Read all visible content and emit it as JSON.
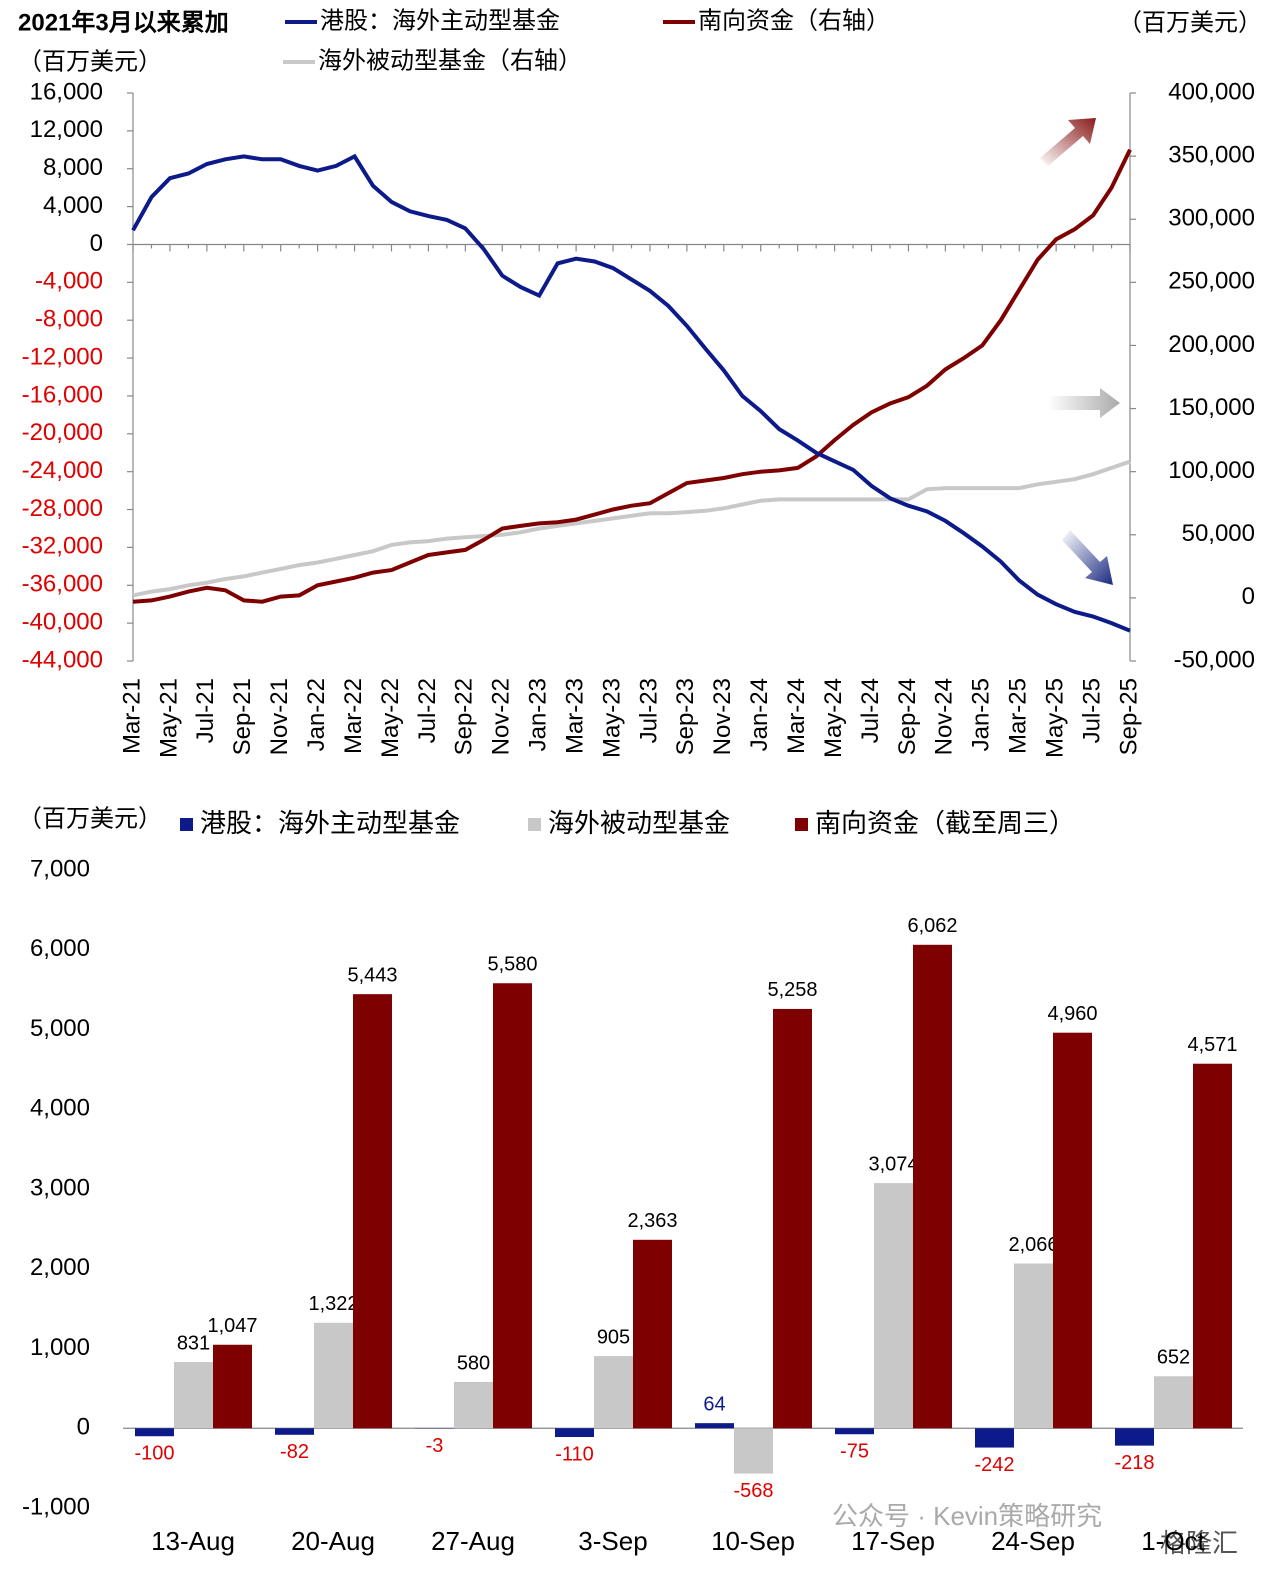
{
  "chart_data": [
    {
      "type": "line",
      "title": "2021年3月以来累加",
      "y_label": "（百万美元）",
      "y2_label": "（百万美元）",
      "negative_tick_color": "#e00000",
      "categories": [
        "Mar-21",
        null,
        "May-21",
        null,
        "Jul-21",
        null,
        "Sep-21",
        null,
        "Nov-21",
        null,
        "Jan-22",
        null,
        "Mar-22",
        null,
        "May-22",
        null,
        "Jul-22",
        null,
        "Sep-22",
        null,
        "Nov-22",
        null,
        "Jan-23",
        null,
        "Mar-23",
        null,
        "May-23",
        null,
        "Jul-23",
        null,
        "Sep-23",
        null,
        "Nov-23",
        null,
        "Jan-24",
        null,
        "Mar-24",
        null,
        "May-24",
        null,
        "Jul-24",
        null,
        "Sep-24",
        null,
        "Nov-24",
        null,
        "Jan-25",
        null,
        "Mar-25",
        null,
        "May-25",
        null,
        "Jul-25",
        null,
        "Sep-25"
      ],
      "ylim": [
        -44000,
        16000
      ],
      "yticks": [
        {
          "value": 16000,
          "label": "16,000"
        },
        {
          "value": 12000,
          "label": "12,000"
        },
        {
          "value": 8000,
          "label": "8,000"
        },
        {
          "value": 4000,
          "label": "4,000"
        },
        0,
        {
          "value": -4000,
          "label": "-4,000"
        },
        {
          "value": -8000,
          "label": "-8,000"
        },
        {
          "value": -12000,
          "label": "-12,000"
        },
        {
          "value": -16000,
          "label": "-16,000"
        },
        {
          "value": -20000,
          "label": "-20,000"
        },
        {
          "value": -24000,
          "label": "-24,000"
        },
        {
          "value": -28000,
          "label": "-28,000"
        },
        {
          "value": -32000,
          "label": "-32,000"
        },
        {
          "value": -36000,
          "label": "-36,000"
        },
        {
          "value": -40000,
          "label": "-40,000"
        },
        {
          "value": -44000,
          "label": "-44,000"
        }
      ],
      "y2lim": [
        -50000,
        400000
      ],
      "y2ticks": [
        {
          "value": 400000,
          "label": "400,000"
        },
        {
          "value": 350000,
          "label": "350,000"
        },
        {
          "value": 300000,
          "label": "300,000"
        },
        {
          "value": 250000,
          "label": "250,000"
        },
        {
          "value": 200000,
          "label": "200,000"
        },
        {
          "value": 150000,
          "label": "150,000"
        },
        {
          "value": 100000,
          "label": "100,000"
        },
        {
          "value": 50000,
          "label": "50,000"
        },
        0,
        {
          "value": -50000,
          "label": "-50,000"
        }
      ],
      "series": [
        {
          "name": "港股：海外主动型基金",
          "color": "#0d1a8a",
          "values": [
            1500,
            5000,
            7000,
            7500,
            8500,
            9000,
            9300,
            9000,
            9000,
            8300,
            7800,
            8300,
            9300,
            6200,
            4500,
            3500,
            3000,
            2600,
            1700,
            -500,
            -3300,
            -4500,
            -5400,
            -2000,
            -1500,
            -1800,
            -2500,
            -3700,
            -4900,
            -6500,
            -8600,
            -11000,
            -13300,
            -16000,
            -17600,
            -19500,
            -20700,
            -22000,
            -22900,
            -23800,
            -25500,
            -26800,
            -27600,
            -28200,
            -29200,
            -30500,
            -31900,
            -33500,
            -35500,
            -37000,
            -38000,
            -38800,
            -39300,
            -40000,
            -40800
          ]
        },
        {
          "name": "南向资金（右轴）",
          "color": "#7f0000",
          "axis": "y2",
          "values": [
            -3000,
            -2000,
            1000,
            5000,
            8000,
            6000,
            -2000,
            -3000,
            1000,
            2000,
            10000,
            13000,
            16000,
            20000,
            22000,
            28000,
            34000,
            36000,
            38000,
            46000,
            55000,
            57000,
            59000,
            60000,
            62000,
            66000,
            70000,
            73000,
            75000,
            83000,
            91000,
            93000,
            95000,
            98000,
            100000,
            101000,
            103000,
            112000,
            125000,
            137000,
            147000,
            154000,
            159000,
            168000,
            181000,
            190000,
            200000,
            220000,
            244000,
            268000,
            284000,
            292000,
            303000,
            325000,
            355000
          ]
        },
        {
          "name": "海外被动型基金（右轴）",
          "color": "#c8c8c8",
          "axis": "y2",
          "values": [
            2000,
            5000,
            7000,
            10000,
            12000,
            15000,
            17000,
            20000,
            23000,
            26000,
            28000,
            31000,
            34000,
            37000,
            42000,
            44000,
            45000,
            47000,
            48000,
            49000,
            50000,
            52000,
            55000,
            57000,
            59000,
            61000,
            63000,
            65000,
            67000,
            67000,
            68000,
            69000,
            71000,
            74000,
            77000,
            78000,
            78000,
            78000,
            78000,
            78000,
            78000,
            78000,
            78000,
            86000,
            87000,
            87000,
            87000,
            87000,
            87000,
            90000,
            92000,
            94000,
            98000,
            103000,
            108000
          ]
        }
      ]
    },
    {
      "type": "bar",
      "y_label": "（百万美元）",
      "negative_label_color": "#e00000",
      "categories": [
        "13-Aug",
        "20-Aug",
        "27-Aug",
        "3-Sep",
        "10-Sep",
        "17-Sep",
        "24-Sep",
        "1-Oct"
      ],
      "ylim": [
        -1000,
        7000
      ],
      "yticks": [
        {
          "value": 7000,
          "label": "7,000"
        },
        {
          "value": 6000,
          "label": "6,000"
        },
        {
          "value": 5000,
          "label": "5,000"
        },
        {
          "value": 4000,
          "label": "4,000"
        },
        {
          "value": 3000,
          "label": "3,000"
        },
        {
          "value": 2000,
          "label": "2,000"
        },
        {
          "value": 1000,
          "label": "1,000"
        },
        0,
        {
          "value": -1000,
          "label": "-1,000"
        }
      ],
      "series": [
        {
          "name": "港股：海外主动型基金",
          "color": "#0d1a8a",
          "values": [
            -100,
            -82,
            -3,
            -110,
            64,
            -75,
            -242,
            -218
          ]
        },
        {
          "name": "海外被动型基金",
          "color": "#c8c8c8",
          "values": [
            831,
            1322,
            580,
            905,
            -568,
            3074,
            2066,
            652
          ],
          "value_labels": [
            "831",
            "1,322",
            "580",
            "905",
            "-568",
            "3,074",
            "2,066",
            "652"
          ]
        },
        {
          "name": "南向资金（截至周三）",
          "color": "#7f0000",
          "values": [
            1047,
            5443,
            5580,
            2363,
            5258,
            6062,
            4960,
            4571
          ],
          "value_labels": [
            "1,047",
            "5,443",
            "5,580",
            "2,363",
            "5,258",
            "6,062",
            "4,960",
            "4,571"
          ]
        }
      ]
    }
  ],
  "watermark": {
    "account": "公众号 · Kevin策略研究",
    "brand": "格隆汇"
  }
}
